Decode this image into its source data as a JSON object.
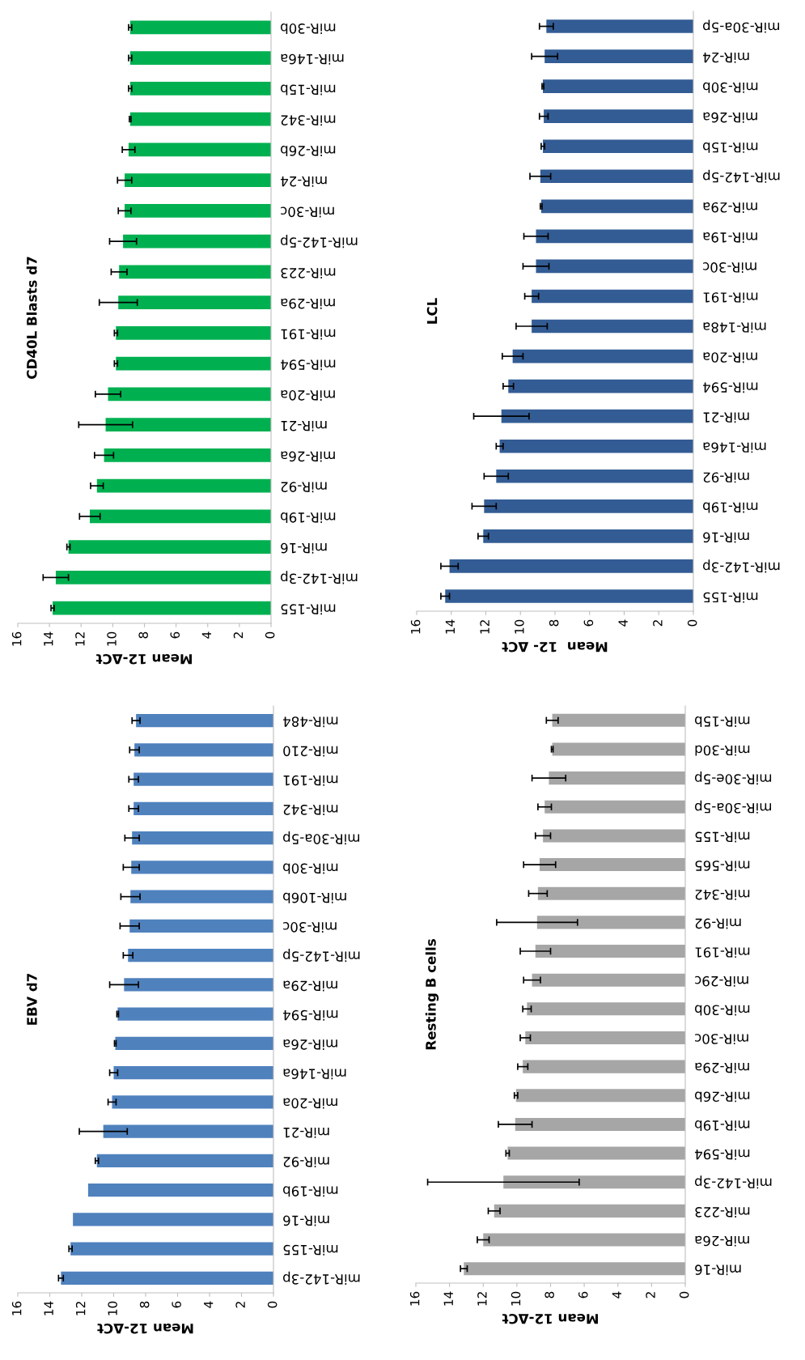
{
  "chart_data": [
    {
      "type": "bar",
      "orientation": "horizontal",
      "title": "CD40L Blasts d7",
      "xlabel": "Mean 12-ΔCt",
      "color": "#00b050",
      "xlim": [
        16,
        0
      ],
      "xticks": [
        0,
        2,
        4,
        6,
        8,
        10,
        12,
        14,
        16
      ],
      "grid": false,
      "categories": [
        "miR-30b",
        "miR-146a",
        "miR-15b",
        "miR-342",
        "miR-26b",
        "miR-24",
        "miR-30c",
        "miR-142-5p",
        "miR-223",
        "miR-29a",
        "miR-191",
        "miR-594",
        "miR-20a",
        "miR-21",
        "miR-26a",
        "miR-92",
        "miR-19b",
        "miR-16",
        "miR-142-3p",
        "miR-155"
      ],
      "values": [
        8.9,
        8.9,
        8.9,
        8.9,
        9.0,
        9.25,
        9.25,
        9.35,
        9.6,
        9.65,
        9.8,
        9.8,
        10.3,
        10.45,
        10.55,
        11.0,
        11.45,
        12.8,
        13.6,
        13.8
      ],
      "errors": [
        0.1,
        0.1,
        0.1,
        0.05,
        0.4,
        0.45,
        0.4,
        0.85,
        0.5,
        1.2,
        0.1,
        0.1,
        0.8,
        1.7,
        0.6,
        0.4,
        0.65,
        0.1,
        0.8,
        0.1
      ]
    },
    {
      "type": "bar",
      "orientation": "horizontal",
      "title": "LCL",
      "xlabel": "Mean  12- ΔCt",
      "color": "#335c94",
      "xlim": [
        16,
        0
      ],
      "xticks": [
        0,
        2,
        4,
        6,
        8,
        10,
        12,
        14,
        16
      ],
      "grid": false,
      "categories": [
        "miR-30a-5p",
        "miR-24",
        "miR-30b",
        "miR-26a",
        "miR-15b",
        "miR-142-5p",
        "miR-29a",
        "miR-19a",
        "miR-30c",
        "miR-191",
        "miR-148a",
        "miR-20a",
        "miR-594",
        "miR-21",
        "miR-146a",
        "miR-92",
        "miR-19b",
        "miR-16",
        "miR-142-3p",
        "miR-155"
      ],
      "values": [
        8.5,
        8.6,
        8.7,
        8.65,
        8.7,
        8.85,
        8.8,
        9.1,
        9.1,
        9.35,
        9.35,
        10.45,
        10.7,
        11.1,
        11.2,
        11.4,
        12.1,
        12.15,
        14.1,
        14.35
      ],
      "errors": [
        0.4,
        0.75,
        0.05,
        0.25,
        0.1,
        0.6,
        0.05,
        0.7,
        0.75,
        0.4,
        0.9,
        0.6,
        0.3,
        1.6,
        0.2,
        0.7,
        0.7,
        0.3,
        0.5,
        0.25
      ]
    },
    {
      "type": "bar",
      "orientation": "horizontal",
      "title": "EBV d7",
      "xlabel": "Mean 12-ΔCt",
      "color": "#4f81bd",
      "xlim": [
        16,
        0
      ],
      "xticks": [
        0,
        2,
        4,
        6,
        8,
        10,
        12,
        14,
        16
      ],
      "grid": false,
      "categories": [
        "miR-484",
        "miR-210",
        "miR-191",
        "miR-342",
        "miR-30a-5p",
        "miR-30b",
        "miR-106b",
        "miR-30c",
        "miR-142-5p",
        "miR-29a",
        "miR-594",
        "miR-26a",
        "miR-146a",
        "miR-20a",
        "miR-21",
        "miR-92",
        "miR-19b",
        "miR-16",
        "miR-155",
        "miR-142-3p"
      ],
      "values": [
        8.6,
        8.7,
        8.75,
        8.75,
        8.85,
        8.9,
        8.95,
        9.0,
        9.1,
        9.35,
        9.75,
        9.9,
        10.0,
        10.1,
        10.65,
        11.05,
        11.6,
        12.55,
        12.7,
        13.3
      ],
      "errors": [
        0.25,
        0.3,
        0.3,
        0.3,
        0.45,
        0.5,
        0.6,
        0.6,
        0.3,
        0.9,
        0.05,
        0.05,
        0.25,
        0.25,
        1.5,
        0.1,
        null,
        null,
        0.1,
        0.15
      ]
    },
    {
      "type": "bar",
      "orientation": "horizontal",
      "title": "Resting B cells",
      "xlabel": "Mean 12-ΔCt",
      "color": "#a6a6a6",
      "xlim": [
        16,
        0
      ],
      "xticks": [
        0,
        2,
        4,
        6,
        8,
        10,
        12,
        14,
        16
      ],
      "grid": false,
      "categories": [
        "miR-15b",
        "miR-30d",
        "miR-30e-5p",
        "miR-30a-5p",
        "miR-155",
        "miR-565",
        "miR-342",
        "miR-92",
        "miR-191",
        "miR-29c",
        "miR-30b",
        "miR-30c",
        "miR-29a",
        "miR-26b",
        "miR-19b",
        "miR-594",
        "miR-142-3p",
        "miR-223",
        "miR-26a",
        "miR-16"
      ],
      "values": [
        7.9,
        7.9,
        8.1,
        8.35,
        8.45,
        8.65,
        8.75,
        8.8,
        8.9,
        9.1,
        9.4,
        9.5,
        9.65,
        10.05,
        10.1,
        10.55,
        10.8,
        11.35,
        12.0,
        13.15
      ],
      "errors": [
        0.35,
        0.05,
        1.0,
        0.4,
        0.45,
        0.95,
        0.55,
        2.4,
        0.9,
        0.5,
        0.25,
        0.3,
        0.3,
        0.1,
        1.0,
        0.1,
        4.5,
        0.35,
        0.35,
        0.2
      ]
    }
  ]
}
